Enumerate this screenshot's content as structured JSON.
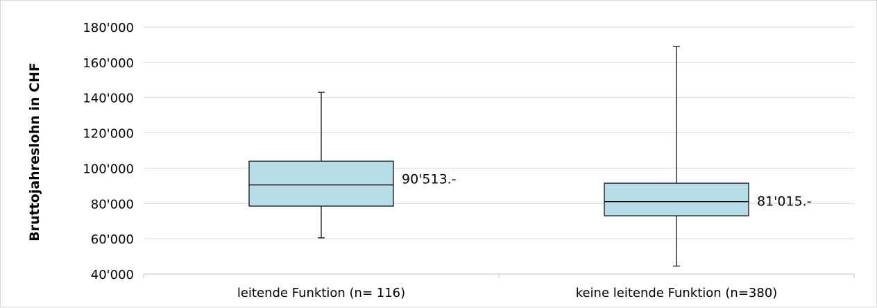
{
  "chart_data": {
    "type": "boxplot",
    "title": "",
    "xlabel": "",
    "ylabel": "Bruttojahreslohn in CHF",
    "ylim": [
      40000,
      180000
    ],
    "yticks": [
      {
        "value": 40000,
        "label": "40'000"
      },
      {
        "value": 60000,
        "label": "60'000"
      },
      {
        "value": 80000,
        "label": "80'000"
      },
      {
        "value": 100000,
        "label": "100'000"
      },
      {
        "value": 120000,
        "label": "120'000"
      },
      {
        "value": 140000,
        "label": "140'000"
      },
      {
        "value": 160000,
        "label": "160'000"
      },
      {
        "value": 180000,
        "label": "180'000"
      }
    ],
    "grid": true,
    "categories": [
      "leitende Funktion (n= 116)",
      "keine leitende Funktion (n=380)"
    ],
    "boxes": [
      {
        "min": 60500,
        "q1": 78500,
        "median": 90513,
        "q3": 104000,
        "max": 143000,
        "label": "90'513.-"
      },
      {
        "min": 44500,
        "q1": 73000,
        "median": 81015,
        "q3": 91500,
        "max": 169000,
        "label": "81'015.-"
      }
    ],
    "colors": {
      "box_fill": "#b7dde8",
      "stroke": "#000000",
      "grid": "#d9d9d9"
    }
  }
}
